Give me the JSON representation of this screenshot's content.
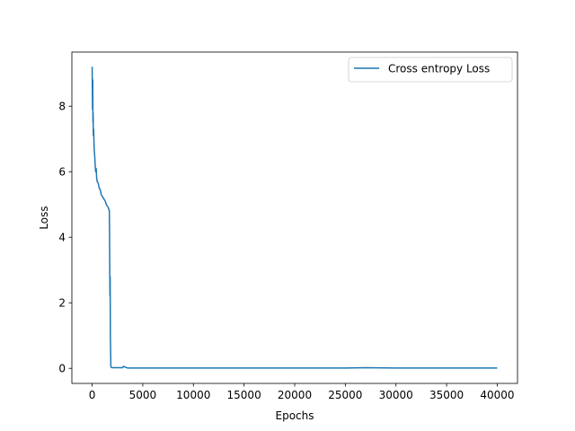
{
  "chart_data": {
    "type": "line",
    "title": "",
    "xlabel": "Epochs",
    "ylabel": "Loss",
    "xlim": [
      -2000,
      42000
    ],
    "ylim": [
      -0.46,
      9.65
    ],
    "xticks": [
      0,
      5000,
      10000,
      15000,
      20000,
      25000,
      30000,
      35000,
      40000
    ],
    "yticks": [
      0,
      2,
      4,
      6,
      8
    ],
    "grid": false,
    "legend": {
      "placement": "top-right",
      "entries": [
        "Cross entropy Loss"
      ]
    },
    "series": [
      {
        "name": "Cross entropy Loss",
        "color": "#1f77b4",
        "x": [
          0,
          20,
          40,
          60,
          80,
          100,
          120,
          150,
          200,
          250,
          300,
          350,
          400,
          450,
          500,
          600,
          700,
          800,
          900,
          1000,
          1100,
          1200,
          1300,
          1400,
          1500,
          1600,
          1700,
          1720,
          1740,
          1760,
          1780,
          1800,
          1850,
          1900,
          2000,
          2500,
          3000,
          3100,
          3500,
          5000,
          10000,
          15000,
          20000,
          25000,
          27000,
          30000,
          35000,
          40000
        ],
        "y": [
          9.2,
          8.6,
          7.9,
          8.8,
          7.5,
          7.8,
          7.1,
          7.3,
          6.7,
          6.5,
          6.2,
          6.0,
          6.1,
          5.8,
          5.7,
          5.65,
          5.5,
          5.45,
          5.3,
          5.25,
          5.2,
          5.15,
          5.1,
          5.0,
          4.95,
          4.9,
          4.8,
          4.1,
          3.0,
          2.2,
          2.8,
          1.0,
          0.05,
          0.03,
          0.02,
          0.02,
          0.02,
          0.06,
          0.01,
          0.01,
          0.01,
          0.01,
          0.01,
          0.01,
          0.02,
          0.01,
          0.01,
          0.01
        ]
      }
    ]
  }
}
